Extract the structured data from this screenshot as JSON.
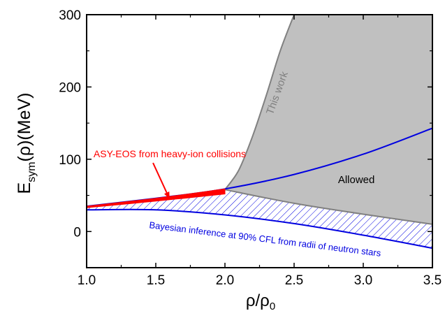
{
  "chart_data": {
    "type": "area",
    "xlabel": "ρ/ρ",
    "xlabel_sub": "0",
    "ylabel": "E",
    "ylabel_sub": "sym",
    "ylabel_tail": "(ρ)(MeV)",
    "xlim": [
      1.0,
      3.5
    ],
    "ylim": [
      -50,
      300
    ],
    "x_ticks": [
      1.0,
      1.5,
      2.0,
      2.5,
      3.0,
      3.5
    ],
    "x_tick_labels": [
      "1.0",
      "1.5",
      "2.0",
      "2.5",
      "3.0",
      "3.5"
    ],
    "y_ticks": [
      0,
      100,
      200,
      300
    ],
    "y_tick_labels": [
      "0",
      "100",
      "200",
      "300"
    ],
    "grid": false,
    "series": [
      {
        "name": "This work",
        "color": "#808080",
        "fill": "#c0c0c0",
        "upper": {
          "x": [
            2.0,
            2.1,
            2.2,
            2.3,
            2.4,
            2.5
          ],
          "y": [
            58,
            85,
            132,
            189,
            250,
            300
          ]
        },
        "lower": {
          "x": [
            2.0,
            2.5,
            3.0,
            3.5
          ],
          "y": [
            58,
            39,
            24,
            10
          ]
        }
      },
      {
        "name": "Bayesian inference at 90% CFL from radii of neutron stars",
        "color": "#0000e0",
        "hatch": true,
        "upper": {
          "x": [
            1.0,
            1.5,
            2.0,
            2.5,
            3.0,
            3.5
          ],
          "y": [
            35,
            46,
            59,
            79,
            107,
            143
          ]
        },
        "lower": {
          "x": [
            1.0,
            1.5,
            2.0,
            2.5,
            3.0,
            3.5
          ],
          "y": [
            30,
            30,
            23,
            11,
            -5,
            -23
          ]
        }
      },
      {
        "name": "ASY-EOS from heavy-ion collisions",
        "color": "#ff0000",
        "upper": {
          "x": [
            1.0,
            1.5,
            2.0
          ],
          "y": [
            35,
            46,
            59
          ]
        },
        "lower": {
          "x": [
            1.0,
            1.5,
            2.0
          ],
          "y": [
            33,
            42,
            52
          ]
        }
      }
    ],
    "annotations": [
      {
        "text": "This work",
        "color": "#808080",
        "at": [
          2.4,
          190
        ],
        "rotation": -70
      },
      {
        "text": "ASY-EOS from heavy-ion collisions",
        "color": "#ff0000",
        "at": [
          1.05,
          103
        ],
        "arrow_to": [
          1.6,
          45
        ]
      },
      {
        "text": "Allowed",
        "color": "#000000",
        "at": [
          2.95,
          67
        ]
      },
      {
        "text": "Bayesian inference at 90% CFL from radii of neutron stars",
        "color": "#0000e0",
        "at": [
          1.45,
          5
        ],
        "rotation": 7
      }
    ]
  }
}
